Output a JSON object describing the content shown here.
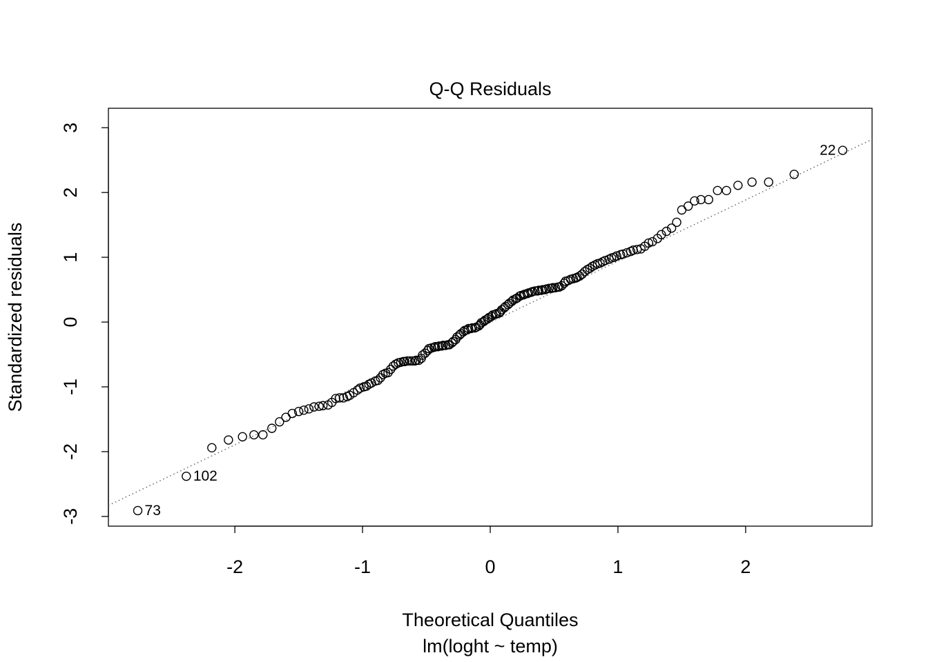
{
  "chart_data": {
    "type": "scatter",
    "title": "Q-Q Residuals",
    "x_label": "Theoretical Quantiles",
    "subtitle": "lm(loght ~ temp)",
    "y_label": "Standardized residuals",
    "x": [
      -2.76,
      -2.38,
      -2.18,
      -2.05,
      -1.94,
      -1.85,
      -1.78,
      -1.71,
      -1.65,
      -1.6,
      -1.55,
      -1.5,
      -1.46,
      -1.42,
      -1.38,
      -1.34,
      -1.31,
      -1.27,
      -1.24,
      -1.21,
      -1.18,
      -1.15,
      -1.12,
      -1.1,
      -1.07,
      -1.04,
      -1.02,
      -0.99,
      -0.97,
      -0.95,
      -0.93,
      -0.9,
      -0.88,
      -0.86,
      -0.84,
      -0.82,
      -0.8,
      -0.78,
      -0.76,
      -0.74,
      -0.72,
      -0.7,
      -0.68,
      -0.67,
      -0.65,
      -0.63,
      -0.61,
      -0.59,
      -0.58,
      -0.56,
      -0.54,
      -0.53,
      -0.51,
      -0.49,
      -0.48,
      -0.46,
      -0.44,
      -0.43,
      -0.41,
      -0.4,
      -0.38,
      -0.37,
      -0.35,
      -0.33,
      -0.32,
      -0.3,
      -0.29,
      -0.27,
      -0.26,
      -0.24,
      -0.23,
      -0.21,
      -0.2,
      -0.18,
      -0.17,
      -0.15,
      -0.14,
      -0.12,
      -0.11,
      -0.09,
      -0.08,
      -0.07,
      -0.05,
      -0.04,
      -0.02,
      -0.01,
      0.01,
      0.02,
      0.04,
      0.05,
      0.07,
      0.08,
      0.09,
      0.11,
      0.12,
      0.14,
      0.15,
      0.17,
      0.18,
      0.2,
      0.21,
      0.23,
      0.24,
      0.26,
      0.27,
      0.29,
      0.3,
      0.32,
      0.33,
      0.35,
      0.37,
      0.38,
      0.4,
      0.41,
      0.43,
      0.44,
      0.46,
      0.48,
      0.49,
      0.51,
      0.53,
      0.54,
      0.56,
      0.58,
      0.59,
      0.61,
      0.63,
      0.65,
      0.67,
      0.68,
      0.7,
      0.72,
      0.74,
      0.76,
      0.78,
      0.8,
      0.82,
      0.84,
      0.86,
      0.88,
      0.9,
      0.93,
      0.95,
      0.97,
      0.99,
      1.02,
      1.04,
      1.07,
      1.1,
      1.12,
      1.15,
      1.18,
      1.21,
      1.24,
      1.27,
      1.31,
      1.34,
      1.38,
      1.42,
      1.46,
      1.5,
      1.55,
      1.6,
      1.65,
      1.71,
      1.78,
      1.85,
      1.94,
      2.05,
      2.18,
      2.38,
      2.76
    ],
    "values": [
      -2.91,
      -2.38,
      -1.94,
      -1.82,
      -1.77,
      -1.74,
      -1.74,
      -1.64,
      -1.54,
      -1.47,
      -1.41,
      -1.38,
      -1.36,
      -1.34,
      -1.31,
      -1.3,
      -1.29,
      -1.28,
      -1.24,
      -1.18,
      -1.17,
      -1.17,
      -1.15,
      -1.13,
      -1.09,
      -1.05,
      -1.02,
      -1.0,
      -0.99,
      -0.96,
      -0.94,
      -0.91,
      -0.9,
      -0.86,
      -0.81,
      -0.79,
      -0.78,
      -0.73,
      -0.68,
      -0.65,
      -0.63,
      -0.62,
      -0.61,
      -0.61,
      -0.6,
      -0.6,
      -0.6,
      -0.6,
      -0.59,
      -0.59,
      -0.56,
      -0.51,
      -0.48,
      -0.44,
      -0.41,
      -0.4,
      -0.39,
      -0.38,
      -0.38,
      -0.37,
      -0.37,
      -0.36,
      -0.36,
      -0.35,
      -0.35,
      -0.32,
      -0.3,
      -0.27,
      -0.23,
      -0.2,
      -0.18,
      -0.15,
      -0.13,
      -0.12,
      -0.1,
      -0.1,
      -0.09,
      -0.09,
      -0.08,
      -0.06,
      -0.04,
      -0.01,
      0.01,
      0.03,
      0.05,
      0.07,
      0.09,
      0.11,
      0.12,
      0.13,
      0.14,
      0.16,
      0.19,
      0.22,
      0.24,
      0.27,
      0.29,
      0.32,
      0.34,
      0.36,
      0.37,
      0.4,
      0.41,
      0.42,
      0.43,
      0.44,
      0.45,
      0.46,
      0.47,
      0.48,
      0.48,
      0.49,
      0.49,
      0.5,
      0.5,
      0.51,
      0.52,
      0.52,
      0.53,
      0.53,
      0.54,
      0.54,
      0.56,
      0.6,
      0.63,
      0.64,
      0.66,
      0.67,
      0.68,
      0.69,
      0.71,
      0.74,
      0.78,
      0.81,
      0.83,
      0.86,
      0.88,
      0.9,
      0.91,
      0.93,
      0.95,
      0.97,
      0.99,
      1.0,
      1.02,
      1.04,
      1.05,
      1.07,
      1.09,
      1.11,
      1.12,
      1.13,
      1.17,
      1.22,
      1.24,
      1.29,
      1.35,
      1.4,
      1.45,
      1.54,
      1.73,
      1.79,
      1.87,
      1.89,
      1.89,
      2.03,
      2.03,
      2.11,
      2.16,
      2.16,
      2.28,
      2.65
    ],
    "color": "#000000",
    "reference_line": {
      "slope": 0.945,
      "intercept": -0.005,
      "color": "#666666"
    },
    "annotations": [
      {
        "text": "22",
        "x": 2.76,
        "y": 2.65,
        "side": "left"
      },
      {
        "text": "102",
        "x": -2.38,
        "y": -2.38,
        "side": "right"
      },
      {
        "text": "73",
        "x": -2.76,
        "y": -2.91,
        "side": "right"
      }
    ],
    "xlim": [
      -2.99,
      2.99
    ],
    "ylim": [
      -3.15,
      3.3
    ],
    "xticks": [
      -2,
      -1,
      0,
      1,
      2
    ],
    "yticks": [
      -3,
      -2,
      -1,
      0,
      1,
      2,
      3
    ]
  }
}
